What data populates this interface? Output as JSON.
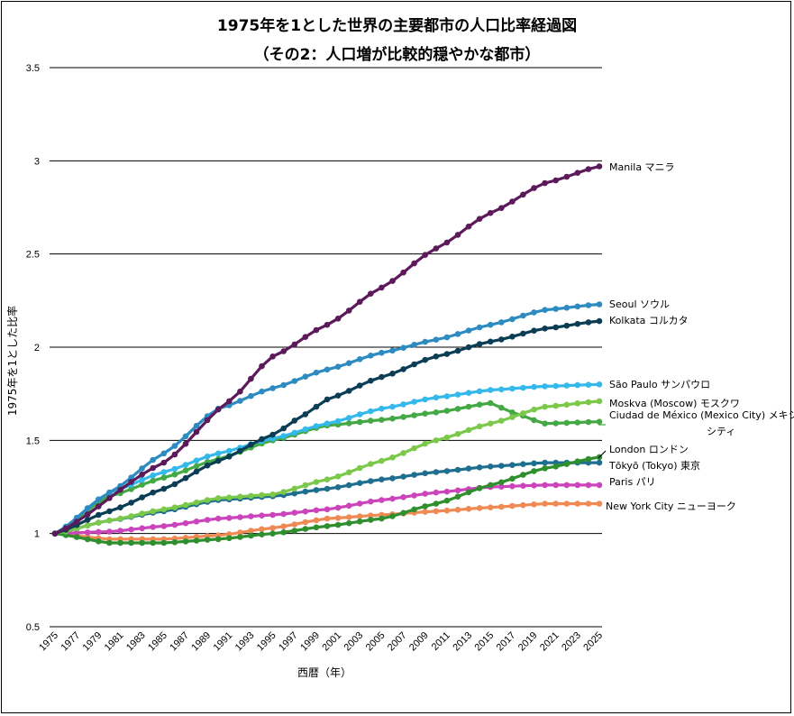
{
  "chart_data": {
    "type": "line",
    "title_line1": "1975年を1とした世界の主要都市の人口比率経過図",
    "title_line2": "（その2：人口増が比較的穏やかな都市）",
    "xlabel": "西暦（年）",
    "ylabel": "1975年を1とした比率",
    "xlim": [
      1975,
      2025
    ],
    "ylim": [
      0.5,
      3.5
    ],
    "yticks": [
      0.5,
      1,
      1.5,
      2,
      2.5,
      3,
      3.5
    ],
    "ytick_labels": [
      "0.5",
      "1",
      "1.5",
      "2",
      "2.5",
      "3",
      "3.5"
    ],
    "xtick_labels": [
      "1975",
      "1977",
      "1979",
      "1981",
      "1983",
      "1985",
      "1987",
      "1989",
      "1991",
      "1993",
      "1995",
      "1997",
      "1999",
      "2001",
      "2003",
      "2005",
      "2007",
      "2009",
      "2011",
      "2013",
      "2015",
      "2017",
      "2019",
      "2021",
      "2023",
      "2025"
    ],
    "grid": "horizontal",
    "colors": {
      "manila": "#5c1a5a",
      "seoul": "#2e8bc0",
      "kolkata": "#0b3d55",
      "saopaulo": "#35b8ea",
      "moskva": "#7cc84a",
      "mexico": "#44a844",
      "london": "#2f8f2f",
      "tokyo": "#1e6f8f",
      "paris": "#cc44bb",
      "newyork": "#ef8a55"
    },
    "series": [
      {
        "key": "manila",
        "name": "Manila マニラ",
        "values": [
          [
            1975,
            1
          ],
          [
            1985,
            1.38
          ],
          [
            1991,
            1.71
          ],
          [
            1995,
            1.95
          ],
          [
            2000,
            2.12
          ],
          [
            2005,
            2.32
          ],
          [
            2010,
            2.53
          ],
          [
            2015,
            2.72
          ],
          [
            2020,
            2.88
          ],
          [
            2025,
            2.97
          ]
        ]
      },
      {
        "key": "seoul",
        "name": "Seoul ソウル",
        "values": [
          [
            1975,
            1
          ],
          [
            1980,
            1.22
          ],
          [
            1985,
            1.43
          ],
          [
            1990,
            1.67
          ],
          [
            1995,
            1.78
          ],
          [
            2000,
            1.88
          ],
          [
            2005,
            1.97
          ],
          [
            2010,
            2.04
          ],
          [
            2015,
            2.12
          ],
          [
            2020,
            2.2
          ],
          [
            2025,
            2.23
          ]
        ]
      },
      {
        "key": "kolkata",
        "name": "Kolkata コルカタ",
        "values": [
          [
            1975,
            1
          ],
          [
            1980,
            1.12
          ],
          [
            1985,
            1.24
          ],
          [
            1990,
            1.39
          ],
          [
            1995,
            1.53
          ],
          [
            1998,
            1.64
          ],
          [
            2000,
            1.72
          ],
          [
            2005,
            1.84
          ],
          [
            2010,
            1.95
          ],
          [
            2015,
            2.03
          ],
          [
            2020,
            2.1
          ],
          [
            2025,
            2.14
          ]
        ]
      },
      {
        "key": "saopaulo",
        "name": "São Paulo サンパウロ",
        "values": [
          [
            1975,
            1
          ],
          [
            1980,
            1.22
          ],
          [
            1985,
            1.33
          ],
          [
            1990,
            1.43
          ],
          [
            1995,
            1.51
          ],
          [
            2000,
            1.59
          ],
          [
            2005,
            1.67
          ],
          [
            2010,
            1.73
          ],
          [
            2015,
            1.77
          ],
          [
            2020,
            1.79
          ],
          [
            2025,
            1.8
          ]
        ]
      },
      {
        "key": "moskva",
        "name": "Moskva (Moscow) モスクワ",
        "values": [
          [
            1975,
            1
          ],
          [
            1980,
            1.07
          ],
          [
            1985,
            1.13
          ],
          [
            1990,
            1.19
          ],
          [
            1995,
            1.21
          ],
          [
            2000,
            1.29
          ],
          [
            2005,
            1.39
          ],
          [
            2010,
            1.5
          ],
          [
            2015,
            1.59
          ],
          [
            2020,
            1.68
          ],
          [
            2025,
            1.71
          ]
        ]
      },
      {
        "key": "mexico",
        "name": "Ciudad de México (Mexico City) メキシコシティ",
        "values": [
          [
            1975,
            1
          ],
          [
            1980,
            1.2
          ],
          [
            1985,
            1.3
          ],
          [
            1990,
            1.4
          ],
          [
            1995,
            1.5
          ],
          [
            2000,
            1.58
          ],
          [
            2005,
            1.61
          ],
          [
            2010,
            1.65
          ],
          [
            2015,
            1.7
          ],
          [
            2017,
            1.65
          ],
          [
            2020,
            1.59
          ],
          [
            2025,
            1.6
          ]
        ]
      },
      {
        "key": "london",
        "name": "London ロンドン",
        "values": [
          [
            1975,
            1
          ],
          [
            1980,
            0.95
          ],
          [
            1985,
            0.95
          ],
          [
            1990,
            0.97
          ],
          [
            1995,
            1.0
          ],
          [
            2000,
            1.04
          ],
          [
            2005,
            1.08
          ],
          [
            2010,
            1.16
          ],
          [
            2015,
            1.26
          ],
          [
            2020,
            1.35
          ],
          [
            2025,
            1.41
          ]
        ]
      },
      {
        "key": "tokyo",
        "name": "Tōkyō (Tokyo) 東京",
        "values": [
          [
            1975,
            1
          ],
          [
            1980,
            1.07
          ],
          [
            1985,
            1.12
          ],
          [
            1990,
            1.18
          ],
          [
            1995,
            1.2
          ],
          [
            2000,
            1.24
          ],
          [
            2005,
            1.29
          ],
          [
            2010,
            1.33
          ],
          [
            2015,
            1.36
          ],
          [
            2020,
            1.38
          ],
          [
            2025,
            1.38
          ]
        ]
      },
      {
        "key": "paris",
        "name": "Paris パリ",
        "values": [
          [
            1975,
            1
          ],
          [
            1980,
            1.01
          ],
          [
            1985,
            1.04
          ],
          [
            1990,
            1.08
          ],
          [
            1995,
            1.1
          ],
          [
            2000,
            1.13
          ],
          [
            2005,
            1.18
          ],
          [
            2010,
            1.22
          ],
          [
            2015,
            1.25
          ],
          [
            2020,
            1.26
          ],
          [
            2025,
            1.26
          ]
        ]
      },
      {
        "key": "newyork",
        "name": "New York City ニューヨーク",
        "values": [
          [
            1975,
            1
          ],
          [
            1980,
            0.97
          ],
          [
            1985,
            0.97
          ],
          [
            1990,
            0.99
          ],
          [
            1995,
            1.03
          ],
          [
            2000,
            1.08
          ],
          [
            2005,
            1.1
          ],
          [
            2010,
            1.12
          ],
          [
            2015,
            1.14
          ],
          [
            2020,
            1.16
          ],
          [
            2025,
            1.16
          ]
        ]
      }
    ]
  }
}
